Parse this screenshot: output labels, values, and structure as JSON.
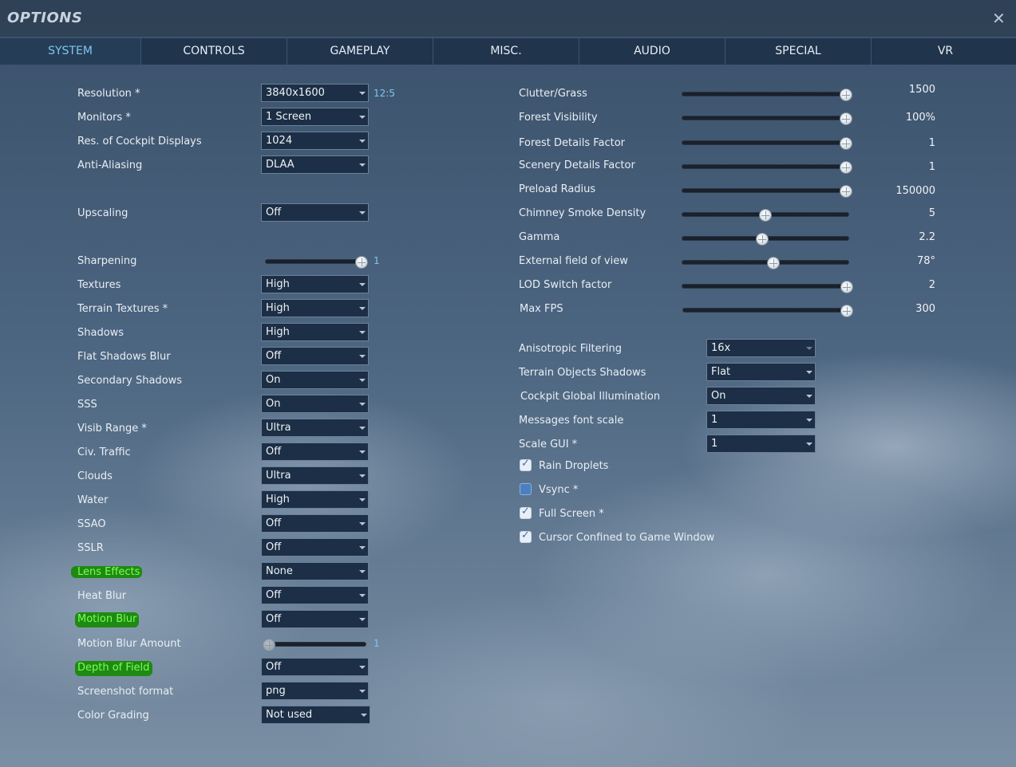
{
  "window": {
    "title": "OPTIONS",
    "close_glyph": "✕"
  },
  "tabs": [
    "SYSTEM",
    "CONTROLS",
    "GAMEPLAY",
    "MISC.",
    "AUDIO",
    "SPECIAL",
    "VR"
  ],
  "active_tab": "SYSTEM",
  "left": {
    "resolution": {
      "label": "Resolution *",
      "value": "3840x1600",
      "aspect": "12:5"
    },
    "monitors": {
      "label": "Monitors *",
      "value": "1 Screen"
    },
    "cockpit_displays": {
      "label": "Res. of Cockpit Displays",
      "value": "1024"
    },
    "anti_aliasing": {
      "label": "Anti-Aliasing",
      "value": "DLAA"
    },
    "upscaling": {
      "label": "Upscaling",
      "value": "Off"
    },
    "sharpening": {
      "label": "Sharpening",
      "value": "1",
      "level": 1.0
    },
    "textures": {
      "label": "Textures",
      "value": "High"
    },
    "terrain_textures": {
      "label": "Terrain Textures *",
      "value": "High"
    },
    "shadows": {
      "label": "Shadows",
      "value": "High"
    },
    "flat_shadows_blur": {
      "label": "Flat Shadows Blur",
      "value": "Off"
    },
    "secondary_shadows": {
      "label": "Secondary Shadows",
      "value": "On"
    },
    "sss": {
      "label": "SSS",
      "value": "On"
    },
    "visib_range": {
      "label": "Visib Range *",
      "value": "Ultra"
    },
    "civ_traffic": {
      "label": "Civ. Traffic",
      "value": "Off"
    },
    "clouds": {
      "label": "Clouds",
      "value": "Ultra"
    },
    "water": {
      "label": "Water",
      "value": "High"
    },
    "ssao": {
      "label": "SSAO",
      "value": "Off"
    },
    "sslr": {
      "label": "SSLR",
      "value": "Off"
    },
    "lens_effects": {
      "label": "Lens Effects",
      "value": "None"
    },
    "heat_blur": {
      "label": "Heat Blur",
      "value": "Off"
    },
    "motion_blur": {
      "label": "Motion Blur",
      "value": "Off"
    },
    "motion_blur_amount": {
      "label": "Motion Blur Amount",
      "value": "1",
      "level": 0.0
    },
    "depth_of_field": {
      "label": "Depth of Field",
      "value": "Off"
    },
    "screenshot_format": {
      "label": "Screenshot format",
      "value": "png"
    },
    "color_grading": {
      "label": "Color Grading",
      "value": "Not used"
    }
  },
  "right": {
    "clutter_grass": {
      "label": "Clutter/Grass",
      "value": "1500",
      "level": 1.0
    },
    "forest_visibility": {
      "label": "Forest Visibility",
      "value": "100%",
      "level": 1.0
    },
    "forest_details": {
      "label": "Forest Details Factor",
      "value": "1",
      "level": 1.0
    },
    "scenery_details": {
      "label": "Scenery Details Factor",
      "value": "1",
      "level": 1.0
    },
    "preload_radius": {
      "label": "Preload Radius",
      "value": "150000",
      "level": 1.0
    },
    "chimney_smoke": {
      "label": "Chimney Smoke Density",
      "value": "5",
      "level": 0.5
    },
    "gamma": {
      "label": "Gamma",
      "value": "2.2",
      "level": 0.48
    },
    "external_fov": {
      "label": "External field of view",
      "value": "78°",
      "level": 0.55
    },
    "lod_switch": {
      "label": "LOD Switch factor",
      "value": "2",
      "level": 1.0
    },
    "max_fps": {
      "label": "Max FPS",
      "value": "300",
      "level": 1.0
    },
    "anisotropic": {
      "label": "Anisotropic Filtering",
      "value": "16x"
    },
    "terrain_objects_shadows": {
      "label": "Terrain Objects Shadows",
      "value": "Flat"
    },
    "cockpit_gi": {
      "label": "Cockpit Global Illumination",
      "value": "On"
    },
    "messages_font_scale": {
      "label": "Messages font scale",
      "value": "1"
    },
    "scale_gui": {
      "label": "Scale GUI *",
      "value": "1"
    },
    "rain_droplets": {
      "label": "Rain Droplets",
      "checked": true
    },
    "vsync": {
      "label": "Vsync *",
      "checked": false
    },
    "full_screen": {
      "label": "Full Screen *",
      "checked": true
    },
    "cursor_confined": {
      "label": "Cursor Confined to Game Window",
      "checked": true
    }
  },
  "colors": {
    "active_tab": "#7fc6ee",
    "highlight_bg": "#1f8a12",
    "highlight_text": "#79ff56"
  },
  "icons": {
    "close": "close-icon",
    "dropdown": "chevron-down-icon"
  }
}
